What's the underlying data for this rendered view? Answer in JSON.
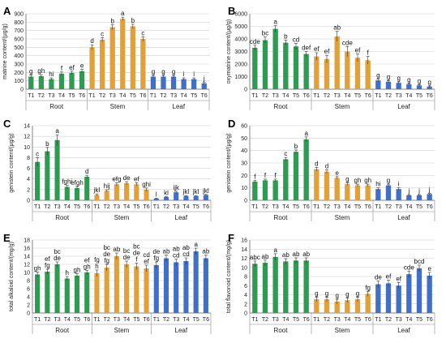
{
  "chart_data": [
    {
      "type": "bar",
      "panel_label": "A",
      "ylabel": "matrine content/(μg/g)",
      "ylim": [
        0,
        900
      ],
      "yticks": [
        0,
        100,
        200,
        300,
        400,
        500,
        600,
        700,
        800,
        900
      ],
      "categories": [
        "T1",
        "T2",
        "T3",
        "T4",
        "T5",
        "T6",
        "T1",
        "T2",
        "T3",
        "T4",
        "T5",
        "T6",
        "T1",
        "T2",
        "T3",
        "T4",
        "T5",
        "T6"
      ],
      "groups": [
        "Root",
        "Stem",
        "Leaf"
      ],
      "values": [
        150,
        155,
        120,
        185,
        195,
        215,
        500,
        590,
        740,
        840,
        750,
        600,
        150,
        150,
        150,
        120,
        120,
        70
      ],
      "errors": [
        18,
        18,
        15,
        20,
        20,
        22,
        30,
        25,
        30,
        20,
        25,
        25,
        15,
        15,
        15,
        15,
        15,
        10
      ],
      "letters": [
        "g",
        "gh",
        "hi",
        "f",
        "ef",
        "e",
        "d",
        "c",
        "b",
        "a",
        "b",
        "c",
        "g",
        "g",
        "g",
        "i",
        "i",
        "j"
      ],
      "colors": [
        "#2e9a52",
        "#2e9a52",
        "#2e9a52",
        "#2e9a52",
        "#2e9a52",
        "#2e9a52",
        "#e0a03a",
        "#e0a03a",
        "#e0a03a",
        "#e0a03a",
        "#e0a03a",
        "#e0a03a",
        "#3f6fc6",
        "#3f6fc6",
        "#3f6fc6",
        "#3f6fc6",
        "#3f6fc6",
        "#3f6fc6"
      ],
      "grid": true
    },
    {
      "type": "bar",
      "panel_label": "B",
      "ylabel": "oxymatrine content/(μg/g)",
      "ylim": [
        0,
        6000
      ],
      "yticks": [
        0,
        1000,
        2000,
        3000,
        4000,
        5000,
        6000
      ],
      "categories": [
        "T1",
        "T2",
        "T3",
        "T4",
        "T5",
        "T6",
        "T1",
        "T2",
        "T3",
        "T4",
        "T5",
        "T6",
        "T1",
        "T2",
        "T3",
        "T4",
        "T5",
        "T6"
      ],
      "groups": [
        "Root",
        "Stem",
        "Leaf"
      ],
      "values": [
        3300,
        3900,
        4800,
        3700,
        3400,
        2800,
        2600,
        2400,
        4200,
        3000,
        2500,
        2300,
        700,
        600,
        500,
        400,
        300,
        200
      ],
      "errors": [
        200,
        250,
        250,
        200,
        250,
        200,
        300,
        300,
        400,
        400,
        300,
        300,
        100,
        80,
        80,
        60,
        60,
        50
      ],
      "letters": [
        "cde",
        "bc",
        "a",
        "b",
        "cd",
        "def",
        "ef",
        "ef",
        "ab",
        "cde",
        "ef",
        "f",
        "g",
        "g",
        "g",
        "g",
        "g",
        "g"
      ],
      "colors": [
        "#2e9a52",
        "#2e9a52",
        "#2e9a52",
        "#2e9a52",
        "#2e9a52",
        "#2e9a52",
        "#e0a03a",
        "#e0a03a",
        "#e0a03a",
        "#e0a03a",
        "#e0a03a",
        "#e0a03a",
        "#3f6fc6",
        "#3f6fc6",
        "#3f6fc6",
        "#3f6fc6",
        "#3f6fc6",
        "#3f6fc6"
      ],
      "grid": true
    },
    {
      "type": "bar",
      "panel_label": "C",
      "ylabel": "genistein content/(μg/g)",
      "ylim": [
        0,
        14
      ],
      "yticks": [
        0,
        2,
        4,
        6,
        8,
        10,
        12,
        14
      ],
      "categories": [
        "T1",
        "T2",
        "T3",
        "T4",
        "T5",
        "T6",
        "T1",
        "T2",
        "T3",
        "T4",
        "T5",
        "T6",
        "T1",
        "T2",
        "T3",
        "T4",
        "T5",
        "T6"
      ],
      "groups": [
        "Root",
        "Stem",
        "Leaf"
      ],
      "values": [
        7.2,
        9.2,
        11.3,
        2.5,
        2.3,
        4.4,
        1.0,
        1.8,
        3.0,
        3.2,
        3.0,
        2.0,
        0.3,
        0.6,
        1.5,
        0.8,
        0.8,
        1.0
      ],
      "errors": [
        0.8,
        0.7,
        1.0,
        0.3,
        0.3,
        0.3,
        0.2,
        0.2,
        0.3,
        0.3,
        0.3,
        0.3,
        0.1,
        0.1,
        0.2,
        0.1,
        0.1,
        0.1
      ],
      "letters": [
        "c",
        "b",
        "a",
        "fghi",
        "efgh",
        "d",
        "jkl",
        "hij",
        "efg",
        "de",
        "ef",
        "ghi",
        "l",
        "kl",
        "ijk",
        "jkl",
        "jkl",
        "jkl"
      ],
      "colors": [
        "#2e9a52",
        "#2e9a52",
        "#2e9a52",
        "#2e9a52",
        "#2e9a52",
        "#2e9a52",
        "#e0a03a",
        "#e0a03a",
        "#e0a03a",
        "#e0a03a",
        "#e0a03a",
        "#e0a03a",
        "#3f6fc6",
        "#3f6fc6",
        "#3f6fc6",
        "#3f6fc6",
        "#3f6fc6",
        "#3f6fc6"
      ],
      "grid": true
    },
    {
      "type": "bar",
      "panel_label": "D",
      "ylabel": "genistein content/(μg/g)",
      "ylim": [
        0,
        60
      ],
      "yticks": [
        0,
        10,
        20,
        30,
        40,
        50,
        60
      ],
      "categories": [
        "T1",
        "T2",
        "T3",
        "T4",
        "T5",
        "T6",
        "T1",
        "T2",
        "T3",
        "T4",
        "T5",
        "T6",
        "T1",
        "T2",
        "T3",
        "T4",
        "T5",
        "T6"
      ],
      "groups": [
        "Root",
        "Stem",
        "Leaf"
      ],
      "values": [
        15,
        16,
        16,
        33,
        39,
        49,
        25,
        23,
        18,
        13,
        12,
        12,
        9,
        12,
        9,
        4,
        4,
        5
      ],
      "errors": [
        1,
        1,
        1,
        1.5,
        1.5,
        2,
        1.5,
        1.5,
        1,
        1,
        1,
        1,
        1,
        1,
        1,
        0.5,
        0.5,
        0.5
      ],
      "letters": [
        "f",
        "f",
        "f",
        "c",
        "b",
        "a",
        "d",
        "d",
        "e",
        "g",
        "gh",
        "gh",
        "hi",
        "g",
        "i",
        "j",
        "j",
        "j"
      ],
      "colors": [
        "#2e9a52",
        "#2e9a52",
        "#2e9a52",
        "#2e9a52",
        "#2e9a52",
        "#2e9a52",
        "#e0a03a",
        "#e0a03a",
        "#e0a03a",
        "#e0a03a",
        "#e0a03a",
        "#e0a03a",
        "#3f6fc6",
        "#3f6fc6",
        "#3f6fc6",
        "#3f6fc6",
        "#3f6fc6",
        "#3f6fc6"
      ],
      "grid": true
    },
    {
      "type": "bar",
      "panel_label": "E",
      "ylabel": "total alkaloid content/(mg/g)",
      "ylim": [
        0,
        18
      ],
      "yticks": [
        0,
        2,
        4,
        6,
        8,
        10,
        12,
        14,
        16,
        18
      ],
      "categories": [
        "T1",
        "T2",
        "T3",
        "T4",
        "T5",
        "T6",
        "T1",
        "T2",
        "T3",
        "T4",
        "T5",
        "T6",
        "T1",
        "T2",
        "T3",
        "T4",
        "T5",
        "T6"
      ],
      "groups": [
        "Root",
        "Stem",
        "Leaf"
      ],
      "values": [
        9.5,
        10.2,
        12.0,
        8.5,
        9.2,
        10.0,
        9.8,
        11.2,
        14.0,
        12.0,
        11.5,
        11.0,
        11.8,
        13.5,
        12.5,
        12.8,
        15.2,
        13.5
      ],
      "errors": [
        0.6,
        0.6,
        0.6,
        0.5,
        0.5,
        0.5,
        0.8,
        0.8,
        0.8,
        0.8,
        0.8,
        0.8,
        0.8,
        0.8,
        0.8,
        0.8,
        0.8,
        0.8
      ],
      "letters": [
        "gh",
        "ef fg",
        "bc de",
        "h",
        "gh",
        "ef gh",
        "fg h",
        "bc de fg",
        "ab",
        "bc de",
        "bc de f",
        "cd ef",
        "de fg",
        "ab",
        "ab cd",
        "ab cd",
        "a",
        "ab"
      ],
      "colors": [
        "#2e9a52",
        "#2e9a52",
        "#2e9a52",
        "#2e9a52",
        "#2e9a52",
        "#2e9a52",
        "#e0a03a",
        "#e0a03a",
        "#e0a03a",
        "#e0a03a",
        "#e0a03a",
        "#e0a03a",
        "#3f6fc6",
        "#3f6fc6",
        "#3f6fc6",
        "#3f6fc6",
        "#3f6fc6",
        "#3f6fc6"
      ],
      "grid": true
    },
    {
      "type": "bar",
      "panel_label": "F",
      "ylabel": "total flavonoid content/(mg/g)",
      "ylim": [
        0,
        16
      ],
      "yticks": [
        0,
        2,
        4,
        6,
        8,
        10,
        12,
        14,
        16
      ],
      "categories": [
        "T1",
        "T2",
        "T3",
        "T4",
        "T5",
        "T6",
        "T1",
        "T2",
        "T3",
        "T4",
        "T5",
        "T6",
        "T1",
        "T2",
        "T3",
        "T4",
        "T5",
        "T6"
      ],
      "groups": [
        "Root",
        "Stem",
        "Leaf"
      ],
      "values": [
        10.8,
        11.0,
        12.3,
        11.3,
        11.5,
        11.5,
        3.0,
        3.0,
        2.5,
        2.8,
        3.0,
        4.2,
        6.3,
        6.5,
        6.0,
        8.5,
        9.8,
        8.2
      ],
      "errors": [
        0.6,
        0.6,
        0.7,
        0.6,
        0.6,
        0.6,
        0.5,
        0.5,
        0.5,
        0.5,
        0.5,
        0.5,
        0.7,
        0.7,
        0.7,
        0.7,
        0.7,
        0.7
      ],
      "letters": [
        "abc",
        "ab",
        "a",
        "ab",
        "ab",
        "ab",
        "g",
        "g",
        "g",
        "g",
        "g",
        "fg",
        "de",
        "ef",
        "ef",
        "cde",
        "bcd",
        "e"
      ],
      "colors": [
        "#2e9a52",
        "#2e9a52",
        "#2e9a52",
        "#2e9a52",
        "#2e9a52",
        "#2e9a52",
        "#e0a03a",
        "#e0a03a",
        "#e0a03a",
        "#e0a03a",
        "#e0a03a",
        "#e0a03a",
        "#3f6fc6",
        "#3f6fc6",
        "#3f6fc6",
        "#3f6fc6",
        "#3f6fc6",
        "#3f6fc6"
      ],
      "grid": true
    }
  ]
}
